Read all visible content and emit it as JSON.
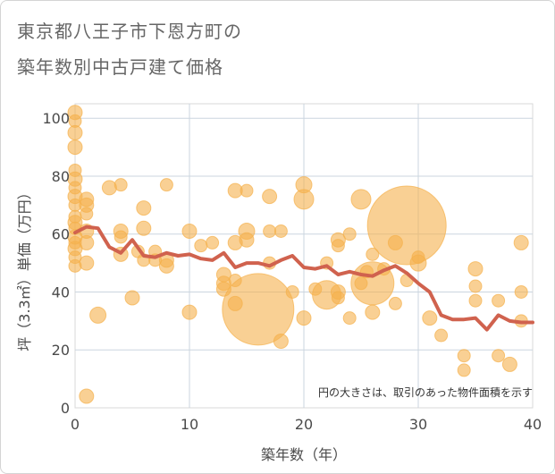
{
  "title": {
    "line1": "東京都八王子市下恩方町の",
    "line2": "築年数別中古戸建て価格"
  },
  "colors": {
    "bubble": "#f5b14c",
    "line": "#d0624e",
    "grid": "#cbd5df",
    "plot_border": "#d8d8d8"
  },
  "chart_data": {
    "type": "scatter",
    "xlabel": "築年数（年）",
    "ylabel": "坪（3.3㎡）単価（万円）",
    "xlim": [
      0,
      40
    ],
    "ylim": [
      0,
      105
    ],
    "xticks": [
      0,
      10,
      20,
      30,
      40
    ],
    "yticks": [
      0,
      20,
      40,
      60,
      80,
      100
    ],
    "note": "円の大きさは、取引のあった物件面積を示す",
    "bubbles": [
      {
        "x": 0,
        "y": 102,
        "r": 8
      },
      {
        "x": 0,
        "y": 99,
        "r": 7
      },
      {
        "x": 0,
        "y": 95,
        "r": 8
      },
      {
        "x": 0,
        "y": 90,
        "r": 8
      },
      {
        "x": 0,
        "y": 82,
        "r": 7
      },
      {
        "x": 0,
        "y": 79,
        "r": 8
      },
      {
        "x": 0,
        "y": 76,
        "r": 7
      },
      {
        "x": 0,
        "y": 73,
        "r": 8
      },
      {
        "x": 0,
        "y": 70,
        "r": 7
      },
      {
        "x": 0,
        "y": 66,
        "r": 7
      },
      {
        "x": 0,
        "y": 64,
        "r": 8
      },
      {
        "x": 0,
        "y": 62,
        "r": 7
      },
      {
        "x": 0,
        "y": 59,
        "r": 8
      },
      {
        "x": 0,
        "y": 57,
        "r": 7
      },
      {
        "x": 0,
        "y": 55,
        "r": 8
      },
      {
        "x": 0,
        "y": 52,
        "r": 7
      },
      {
        "x": 0,
        "y": 49,
        "r": 7
      },
      {
        "x": 1,
        "y": 72,
        "r": 8
      },
      {
        "x": 1,
        "y": 70,
        "r": 8
      },
      {
        "x": 1,
        "y": 67,
        "r": 7
      },
      {
        "x": 1,
        "y": 61,
        "r": 8
      },
      {
        "x": 1,
        "y": 57,
        "r": 8
      },
      {
        "x": 1,
        "y": 50,
        "r": 8
      },
      {
        "x": 1,
        "y": 4,
        "r": 8
      },
      {
        "x": 2,
        "y": 32,
        "r": 9
      },
      {
        "x": 3,
        "y": 76,
        "r": 8
      },
      {
        "x": 4,
        "y": 77,
        "r": 7
      },
      {
        "x": 4,
        "y": 61,
        "r": 8
      },
      {
        "x": 4,
        "y": 59,
        "r": 7
      },
      {
        "x": 4,
        "y": 53,
        "r": 8
      },
      {
        "x": 5,
        "y": 38,
        "r": 8
      },
      {
        "x": 5.5,
        "y": 54,
        "r": 7
      },
      {
        "x": 6,
        "y": 69,
        "r": 8
      },
      {
        "x": 6,
        "y": 62,
        "r": 8
      },
      {
        "x": 6,
        "y": 51,
        "r": 7
      },
      {
        "x": 7,
        "y": 54,
        "r": 7
      },
      {
        "x": 7,
        "y": 51,
        "r": 7
      },
      {
        "x": 8,
        "y": 77,
        "r": 7
      },
      {
        "x": 8,
        "y": 51,
        "r": 8
      },
      {
        "x": 8,
        "y": 49,
        "r": 8
      },
      {
        "x": 10,
        "y": 61,
        "r": 8
      },
      {
        "x": 10,
        "y": 33,
        "r": 8
      },
      {
        "x": 11,
        "y": 56,
        "r": 7
      },
      {
        "x": 12,
        "y": 57,
        "r": 7
      },
      {
        "x": 13,
        "y": 46,
        "r": 8
      },
      {
        "x": 13,
        "y": 43,
        "r": 8
      },
      {
        "x": 13,
        "y": 41,
        "r": 8
      },
      {
        "x": 14,
        "y": 75,
        "r": 8
      },
      {
        "x": 14,
        "y": 57,
        "r": 8
      },
      {
        "x": 14,
        "y": 44,
        "r": 7
      },
      {
        "x": 14,
        "y": 36,
        "r": 8
      },
      {
        "x": 15,
        "y": 75,
        "r": 7
      },
      {
        "x": 15,
        "y": 61,
        "r": 9
      },
      {
        "x": 15,
        "y": 58,
        "r": 8
      },
      {
        "x": 16,
        "y": 34,
        "r": 40
      },
      {
        "x": 17,
        "y": 73,
        "r": 8
      },
      {
        "x": 17,
        "y": 61,
        "r": 7
      },
      {
        "x": 17,
        "y": 50,
        "r": 7
      },
      {
        "x": 18,
        "y": 61,
        "r": 7
      },
      {
        "x": 18,
        "y": 23,
        "r": 8
      },
      {
        "x": 19,
        "y": 40,
        "r": 7
      },
      {
        "x": 20,
        "y": 77,
        "r": 9
      },
      {
        "x": 20,
        "y": 72,
        "r": 11
      },
      {
        "x": 20,
        "y": 31,
        "r": 8
      },
      {
        "x": 21,
        "y": 41,
        "r": 7
      },
      {
        "x": 22,
        "y": 50,
        "r": 7
      },
      {
        "x": 22,
        "y": 39,
        "r": 16
      },
      {
        "x": 23,
        "y": 58,
        "r": 8
      },
      {
        "x": 23,
        "y": 56,
        "r": 7
      },
      {
        "x": 23,
        "y": 40,
        "r": 8
      },
      {
        "x": 23,
        "y": 38,
        "r": 7
      },
      {
        "x": 24,
        "y": 60,
        "r": 7
      },
      {
        "x": 24,
        "y": 31,
        "r": 7
      },
      {
        "x": 25,
        "y": 72,
        "r": 11
      },
      {
        "x": 25,
        "y": 43,
        "r": 7
      },
      {
        "x": 25.5,
        "y": 47,
        "r": 7
      },
      {
        "x": 26,
        "y": 53,
        "r": 7
      },
      {
        "x": 26,
        "y": 43,
        "r": 24
      },
      {
        "x": 26,
        "y": 33,
        "r": 8
      },
      {
        "x": 27,
        "y": 48,
        "r": 7
      },
      {
        "x": 28,
        "y": 57,
        "r": 8
      },
      {
        "x": 28,
        "y": 36,
        "r": 7
      },
      {
        "x": 29,
        "y": 63,
        "r": 44
      },
      {
        "x": 29,
        "y": 44,
        "r": 7
      },
      {
        "x": 30,
        "y": 52,
        "r": 7
      },
      {
        "x": 30,
        "y": 50,
        "r": 9
      },
      {
        "x": 31,
        "y": 31,
        "r": 8
      },
      {
        "x": 32,
        "y": 25,
        "r": 7
      },
      {
        "x": 34,
        "y": 18,
        "r": 7
      },
      {
        "x": 34,
        "y": 13,
        "r": 7
      },
      {
        "x": 35,
        "y": 48,
        "r": 8
      },
      {
        "x": 35,
        "y": 42,
        "r": 7
      },
      {
        "x": 35,
        "y": 37,
        "r": 7
      },
      {
        "x": 37,
        "y": 37,
        "r": 7
      },
      {
        "x": 37,
        "y": 18,
        "r": 7
      },
      {
        "x": 38,
        "y": 15,
        "r": 8
      },
      {
        "x": 39,
        "y": 57,
        "r": 8
      },
      {
        "x": 39,
        "y": 40,
        "r": 7
      },
      {
        "x": 39,
        "y": 30,
        "r": 7
      }
    ],
    "trend": {
      "x": [
        0,
        1,
        2,
        3,
        4,
        5,
        6,
        7,
        8,
        9,
        10,
        11,
        12,
        13,
        14,
        15,
        16,
        17,
        18,
        19,
        20,
        21,
        22,
        23,
        24,
        25,
        26,
        27,
        28,
        29,
        30,
        31,
        32,
        33,
        34,
        35,
        36,
        37,
        38,
        39,
        40
      ],
      "y": [
        60.5,
        62.5,
        62,
        55.5,
        53.5,
        58,
        52.5,
        52,
        53.5,
        52.5,
        53,
        51.5,
        51,
        53.5,
        48.5,
        50,
        50,
        49,
        51,
        52.5,
        48.5,
        48,
        49,
        46,
        47,
        46,
        45.5,
        47.5,
        49,
        46.5,
        43,
        40,
        32,
        30.5,
        30.5,
        31,
        27,
        32,
        30,
        29.5,
        29.5
      ]
    }
  }
}
